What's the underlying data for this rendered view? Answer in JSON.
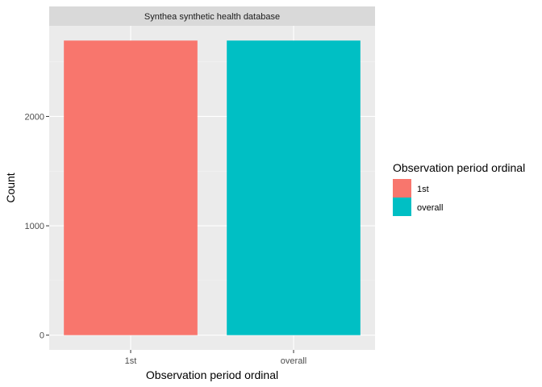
{
  "chart_data": {
    "type": "bar",
    "facet_title": "Synthea synthetic health database",
    "categories": [
      "1st",
      "overall"
    ],
    "values": [
      2694,
      2694
    ],
    "colors": [
      "#F8766D",
      "#00BFC4"
    ],
    "xlabel": "Observation period ordinal",
    "ylabel": "Count",
    "ylim": [
      -135,
      2829
    ],
    "yticks": [
      0,
      1000,
      2000
    ],
    "grid": true,
    "legend": {
      "title": "Observation period ordinal",
      "position": "right",
      "entries": [
        {
          "label": "1st",
          "color": "#F8766D"
        },
        {
          "label": "overall",
          "color": "#00BFC4"
        }
      ]
    }
  }
}
